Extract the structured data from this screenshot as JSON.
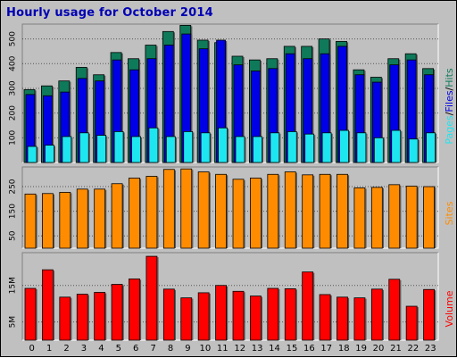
{
  "window": {
    "title": "Hourly usage for October 2014"
  },
  "legend": {
    "pages": "Pages",
    "files": "Files",
    "hits": "Hits",
    "sites": "Sites",
    "volume": "Volume",
    "separator": "/"
  },
  "colors": {
    "hits": "#0f7a5a",
    "files": "#0000e6",
    "pages": "#1ee6f0",
    "sites": "#ff8c00",
    "volume": "#ff0000",
    "title": "#0000b4",
    "panel_bg": "#c0c0c0",
    "plot_bg": "#c0c0c0"
  },
  "chart_data": [
    {
      "type": "bar",
      "name": "pages-files-hits",
      "categories": [
        "0",
        "1",
        "2",
        "3",
        "4",
        "5",
        "6",
        "7",
        "8",
        "9",
        "10",
        "11",
        "12",
        "13",
        "14",
        "15",
        "16",
        "17",
        "18",
        "19",
        "20",
        "21",
        "22",
        "23"
      ],
      "ylim": [
        0,
        560
      ],
      "yticks": [
        100,
        200,
        300,
        400,
        500
      ],
      "ytick_labels": [
        "100",
        "200",
        "300",
        "400",
        "500"
      ],
      "series": [
        {
          "name": "Hits",
          "values": [
            295,
            310,
            330,
            385,
            355,
            445,
            420,
            475,
            530,
            555,
            495,
            485,
            430,
            415,
            420,
            470,
            470,
            500,
            490,
            375,
            345,
            420,
            440,
            380
          ]
        },
        {
          "name": "Files",
          "values": [
            275,
            270,
            285,
            340,
            330,
            415,
            375,
            420,
            475,
            520,
            460,
            495,
            395,
            370,
            380,
            440,
            420,
            440,
            470,
            355,
            325,
            395,
            415,
            355
          ]
        },
        {
          "name": "Pages",
          "values": [
            65,
            70,
            105,
            120,
            110,
            125,
            105,
            140,
            105,
            125,
            120,
            140,
            105,
            105,
            120,
            125,
            115,
            120,
            130,
            120,
            100,
            130,
            95,
            120
          ]
        }
      ]
    },
    {
      "type": "bar",
      "name": "sites",
      "categories": [
        "0",
        "1",
        "2",
        "3",
        "4",
        "5",
        "6",
        "7",
        "8",
        "9",
        "10",
        "11",
        "12",
        "13",
        "14",
        "15",
        "16",
        "17",
        "18",
        "19",
        "20",
        "21",
        "22",
        "23"
      ],
      "ylim": [
        0,
        330
      ],
      "yticks": [
        50,
        150,
        250
      ],
      "ytick_labels": [
        "50",
        "150",
        "250"
      ],
      "series": [
        {
          "name": "Sites",
          "values": [
            220,
            222,
            227,
            240,
            240,
            262,
            285,
            292,
            320,
            322,
            310,
            300,
            280,
            285,
            300,
            310,
            298,
            300,
            300,
            245,
            247,
            258,
            252,
            250
          ]
        }
      ]
    },
    {
      "type": "bar",
      "name": "volume",
      "categories": [
        "0",
        "1",
        "2",
        "3",
        "4",
        "5",
        "6",
        "7",
        "8",
        "9",
        "10",
        "11",
        "12",
        "13",
        "14",
        "15",
        "16",
        "17",
        "18",
        "19",
        "20",
        "21",
        "22",
        "23"
      ],
      "ylim": [
        0,
        24
      ],
      "yticks": [
        5,
        15
      ],
      "ytick_labels": [
        "5M",
        "15M"
      ],
      "series": [
        {
          "name": "Volume",
          "values": [
            14.2,
            19.3,
            11.8,
            12.6,
            13.1,
            15.3,
            16.8,
            23.0,
            14.0,
            11.6,
            13.0,
            15.0,
            13.4,
            12.1,
            14.2,
            14.1,
            18.7,
            12.5,
            11.8,
            11.6,
            14.0,
            16.7,
            9.3,
            13.9
          ]
        }
      ]
    }
  ]
}
